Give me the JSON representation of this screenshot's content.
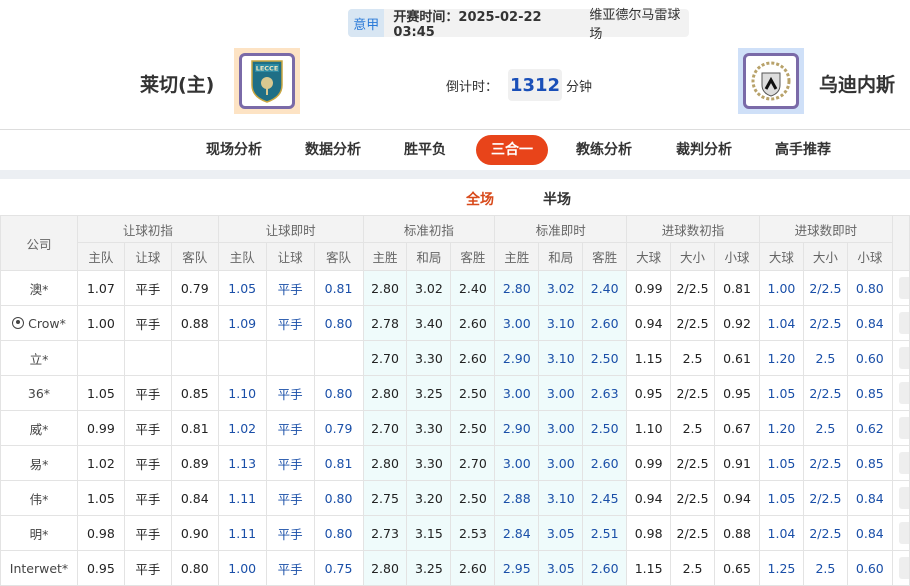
{
  "match": {
    "league": "意甲",
    "kickoff": "开赛时间：2025-02-22 03:45",
    "venue": "维亚德尔马雷球场",
    "home_team": "莱切(主)",
    "away_team": "乌迪内斯",
    "countdown_label": "倒计时：",
    "countdown_value": "1312",
    "countdown_unit": "分钟",
    "home_logo_text": "LECCE"
  },
  "nav": {
    "tabs": [
      {
        "label": "现场分析"
      },
      {
        "label": "数据分析"
      },
      {
        "label": "胜平负"
      },
      {
        "label": "三合一",
        "active": true
      },
      {
        "label": "教练分析"
      },
      {
        "label": "裁判分析"
      },
      {
        "label": "高手推荐"
      }
    ]
  },
  "subtabs": [
    {
      "label": "全场",
      "active": true
    },
    {
      "label": "半场"
    }
  ],
  "colors": {
    "accent": "#e8441a",
    "live_value": "#1a4fa8",
    "standard_bg": "#effbfb"
  },
  "table": {
    "company_header": "公司",
    "groups": [
      "让球初指",
      "让球即时",
      "标准初指",
      "标准即时",
      "进球数初指",
      "进球数即时"
    ],
    "subheaders": [
      "主队",
      "让球",
      "客队",
      "主队",
      "让球",
      "客队",
      "主胜",
      "和局",
      "客胜",
      "主胜",
      "和局",
      "客胜",
      "大球",
      "大小",
      "小球",
      "大球",
      "大小",
      "小球"
    ],
    "rows": [
      {
        "company": "澳*",
        "values": [
          "1.07",
          "平手",
          "0.79",
          "1.05",
          "平手",
          "0.81",
          "2.80",
          "3.02",
          "2.40",
          "2.80",
          "3.02",
          "2.40",
          "0.99",
          "2/2.5",
          "0.81",
          "1.00",
          "2/2.5",
          "0.80"
        ]
      },
      {
        "company": "Crow*",
        "icon": "soccer-ball-icon",
        "values": [
          "1.00",
          "平手",
          "0.88",
          "1.09",
          "平手",
          "0.80",
          "2.78",
          "3.40",
          "2.60",
          "3.00",
          "3.10",
          "2.60",
          "0.94",
          "2/2.5",
          "0.92",
          "1.04",
          "2/2.5",
          "0.84"
        ]
      },
      {
        "company": "立*",
        "values": [
          "",
          "",
          "",
          "",
          "",
          "",
          "2.70",
          "3.30",
          "2.60",
          "2.90",
          "3.10",
          "2.50",
          "1.15",
          "2.5",
          "0.61",
          "1.20",
          "2.5",
          "0.60"
        ]
      },
      {
        "company": "36*",
        "values": [
          "1.05",
          "平手",
          "0.85",
          "1.10",
          "平手",
          "0.80",
          "2.80",
          "3.25",
          "2.50",
          "3.00",
          "3.00",
          "2.63",
          "0.95",
          "2/2.5",
          "0.95",
          "1.05",
          "2/2.5",
          "0.85"
        ]
      },
      {
        "company": "威*",
        "values": [
          "0.99",
          "平手",
          "0.81",
          "1.02",
          "平手",
          "0.79",
          "2.70",
          "3.30",
          "2.50",
          "2.90",
          "3.00",
          "2.50",
          "1.10",
          "2.5",
          "0.67",
          "1.20",
          "2.5",
          "0.62"
        ]
      },
      {
        "company": "易*",
        "values": [
          "1.02",
          "平手",
          "0.89",
          "1.13",
          "平手",
          "0.81",
          "2.80",
          "3.30",
          "2.70",
          "3.00",
          "3.00",
          "2.60",
          "0.99",
          "2/2.5",
          "0.91",
          "1.05",
          "2/2.5",
          "0.85"
        ]
      },
      {
        "company": "伟*",
        "values": [
          "1.05",
          "平手",
          "0.84",
          "1.11",
          "平手",
          "0.80",
          "2.75",
          "3.20",
          "2.50",
          "2.88",
          "3.10",
          "2.45",
          "0.94",
          "2/2.5",
          "0.94",
          "1.05",
          "2/2.5",
          "0.84"
        ]
      },
      {
        "company": "明*",
        "values": [
          "0.98",
          "平手",
          "0.90",
          "1.11",
          "平手",
          "0.80",
          "2.73",
          "3.15",
          "2.53",
          "2.84",
          "3.05",
          "2.51",
          "0.98",
          "2/2.5",
          "0.88",
          "1.04",
          "2/2.5",
          "0.84"
        ]
      },
      {
        "company": "Interwet*",
        "values": [
          "0.95",
          "平手",
          "0.80",
          "1.00",
          "平手",
          "0.75",
          "2.80",
          "3.25",
          "2.60",
          "2.95",
          "3.05",
          "2.60",
          "1.15",
          "2.5",
          "0.65",
          "1.25",
          "2.5",
          "0.60"
        ]
      }
    ]
  }
}
